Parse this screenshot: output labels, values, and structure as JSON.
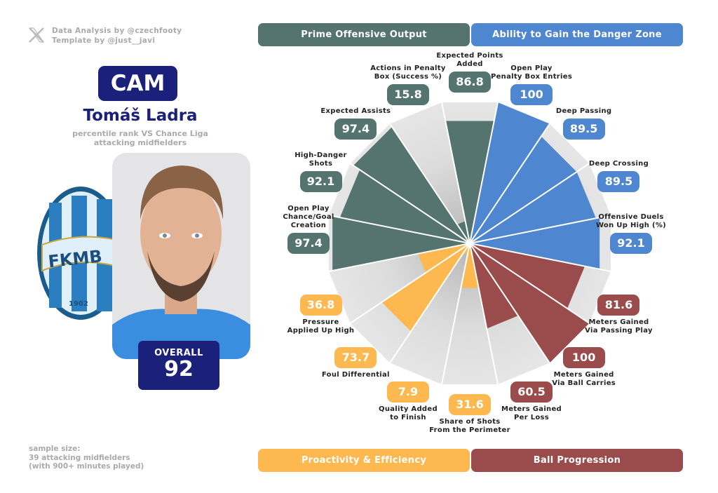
{
  "credits": {
    "line1": "Data Analysis by @czechfooty",
    "line2": "Template by @just__javi",
    "icon": "x-logo-icon"
  },
  "player": {
    "position": "CAM",
    "name": "Tomáš Ladra",
    "subtitle_line1": "percentile rank VS Chance Liga",
    "subtitle_line2": "attacking midfielders",
    "overall_label": "OVERALL",
    "overall_value": "92",
    "club_logo_text": "FKMB",
    "club_logo_year": "1902"
  },
  "sample": {
    "line1": "sample size:",
    "line2": "39 attacking midfielders",
    "line3": "(with 900+ minutes played)"
  },
  "colors": {
    "prime": "#557470",
    "danger": "#4f86d0",
    "progression": "#9a4b4b",
    "proactivity": "#fdb84f",
    "navy": "#1b207a",
    "background_wedge": "#e2e2e2"
  },
  "banners": {
    "prime": "Prime Offensive Output",
    "danger": "Ability to Gain the Danger Zone",
    "proactivity": "Proactivity & Efficiency",
    "progression": "Ball Progression"
  },
  "chart_data": {
    "type": "pie-radar",
    "range": [
      0,
      100
    ],
    "categories": [
      {
        "label": [
          "Expected Points",
          "Added"
        ],
        "value": 86.8,
        "group": "prime"
      },
      {
        "label": [
          "Open Play",
          "Penalty Box Entries"
        ],
        "value": 100,
        "group": "danger"
      },
      {
        "label": [
          "Deep Passing"
        ],
        "value": 89.5,
        "group": "danger"
      },
      {
        "label": [
          "Deep Crossing"
        ],
        "value": 89.5,
        "group": "danger"
      },
      {
        "label": [
          "Offensive Duels",
          "Won Up High (%)"
        ],
        "value": 92.1,
        "group": "danger"
      },
      {
        "label": [
          "Meters Gained",
          "Via Passing Play"
        ],
        "value": 81.6,
        "group": "progression"
      },
      {
        "label": [
          "Meters Gained",
          "Via Ball Carries"
        ],
        "value": 100,
        "group": "progression"
      },
      {
        "label": [
          "Meters Gained",
          "Per Loss"
        ],
        "value": 60.5,
        "group": "progression"
      },
      {
        "label": [
          "Share of Shots",
          "From the Perimeter"
        ],
        "value": 31.6,
        "group": "proactivity"
      },
      {
        "label": [
          "Quality Added",
          "to Finish"
        ],
        "value": 7.9,
        "group": "proactivity"
      },
      {
        "label": [
          "Foul Differential"
        ],
        "value": 73.7,
        "group": "proactivity"
      },
      {
        "label": [
          "Pressure",
          "Applied Up High"
        ],
        "value": 36.8,
        "group": "proactivity"
      },
      {
        "label": [
          "Open Play",
          "Chance/Goal",
          "Creation"
        ],
        "value": 97.4,
        "group": "prime"
      },
      {
        "label": [
          "High-Danger",
          "Shots"
        ],
        "value": 92.1,
        "group": "prime"
      },
      {
        "label": [
          "Expected Assists"
        ],
        "value": 97.4,
        "group": "prime"
      },
      {
        "label": [
          "Actions in Penalty",
          "Box (Success %)"
        ],
        "value": 15.8,
        "group": "prime"
      }
    ]
  }
}
